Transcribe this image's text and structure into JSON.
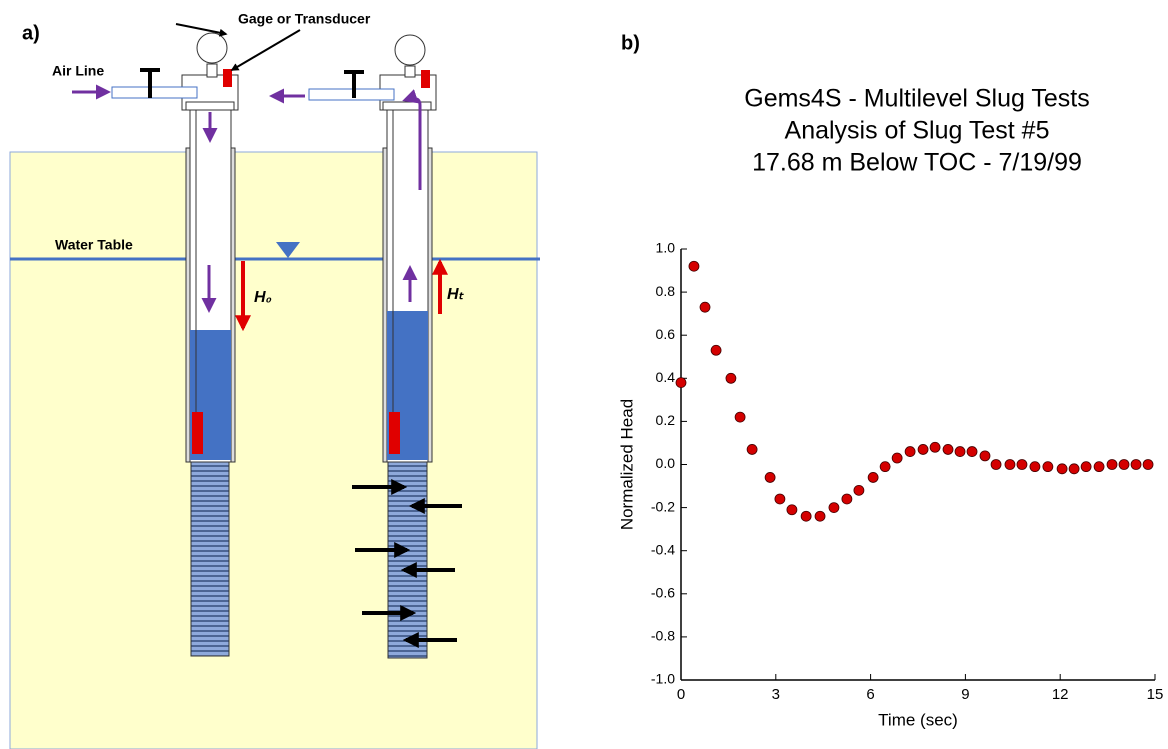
{
  "panel_a": {
    "label": "a)",
    "gage": "Gage or Transducer",
    "air_line": "Air Line",
    "water_table": "Water Table",
    "h0": "H₀",
    "ht": "Hₜ"
  },
  "chart_data": {
    "type": "scatter",
    "panel_label": "b)",
    "title": [
      "Gems4S - Multilevel Slug Tests",
      "Analysis of Slug Test #5",
      "17.68 m Below TOC - 7/19/99"
    ],
    "x_label": "Time (sec)",
    "y_label": "Normalized Head",
    "color": "#d40000",
    "x": [
      0,
      0.41,
      0.76,
      1.11,
      1.58,
      1.87,
      2.25,
      2.82,
      3.13,
      3.51,
      3.96,
      4.4,
      4.84,
      5.25,
      5.63,
      6.08,
      6.46,
      6.84,
      7.25,
      7.66,
      8.04,
      8.45,
      8.83,
      9.21,
      9.62,
      9.97,
      10.41,
      10.79,
      11.2,
      11.61,
      12.06,
      12.44,
      12.82,
      13.23,
      13.64,
      14.02,
      14.4,
      14.78
    ],
    "values": [
      0.38,
      0.92,
      0.73,
      0.53,
      0.4,
      0.22,
      0.07,
      -0.06,
      -0.16,
      -0.21,
      -0.24,
      -0.24,
      -0.2,
      -0.16,
      -0.12,
      -0.06,
      -0.01,
      0.03,
      0.06,
      0.07,
      0.08,
      0.07,
      0.06,
      0.06,
      0.04,
      0,
      0,
      0,
      -0.01,
      -0.01,
      -0.02,
      -0.02,
      -0.01,
      -0.01,
      0,
      0,
      0,
      0
    ],
    "xlim": [
      0,
      15
    ],
    "xticks": [
      0,
      3,
      6,
      9,
      12,
      15
    ],
    "ylim": [
      -1,
      1
    ],
    "yticks": [
      {
        "value": -1,
        "label": "-1.0"
      },
      -0.8,
      -0.6,
      -0.4,
      -0.2,
      {
        "value": 0,
        "label": "0.0"
      },
      0.2,
      0.4,
      0.6,
      0.8,
      {
        "value": 1,
        "label": "1.0"
      }
    ]
  }
}
